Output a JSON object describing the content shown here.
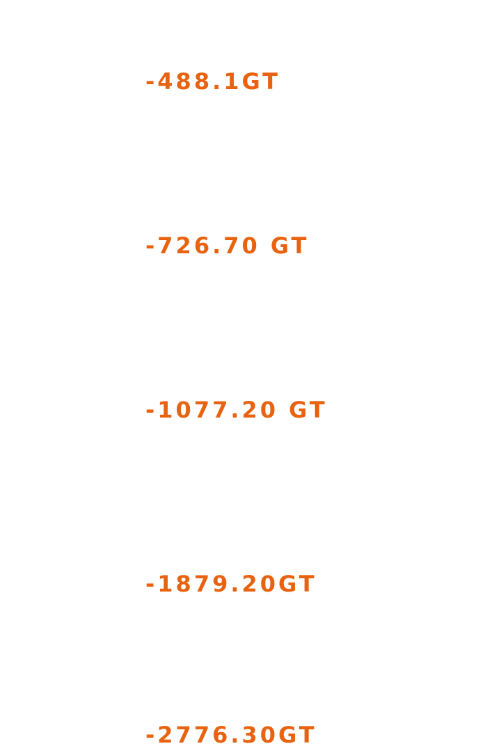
{
  "text_color": "#E8620F",
  "values": [
    "-488.1GT",
    "-726.70 GT",
    "-1077.20 GT",
    "-1879.20GT",
    "-2776.30GT"
  ]
}
